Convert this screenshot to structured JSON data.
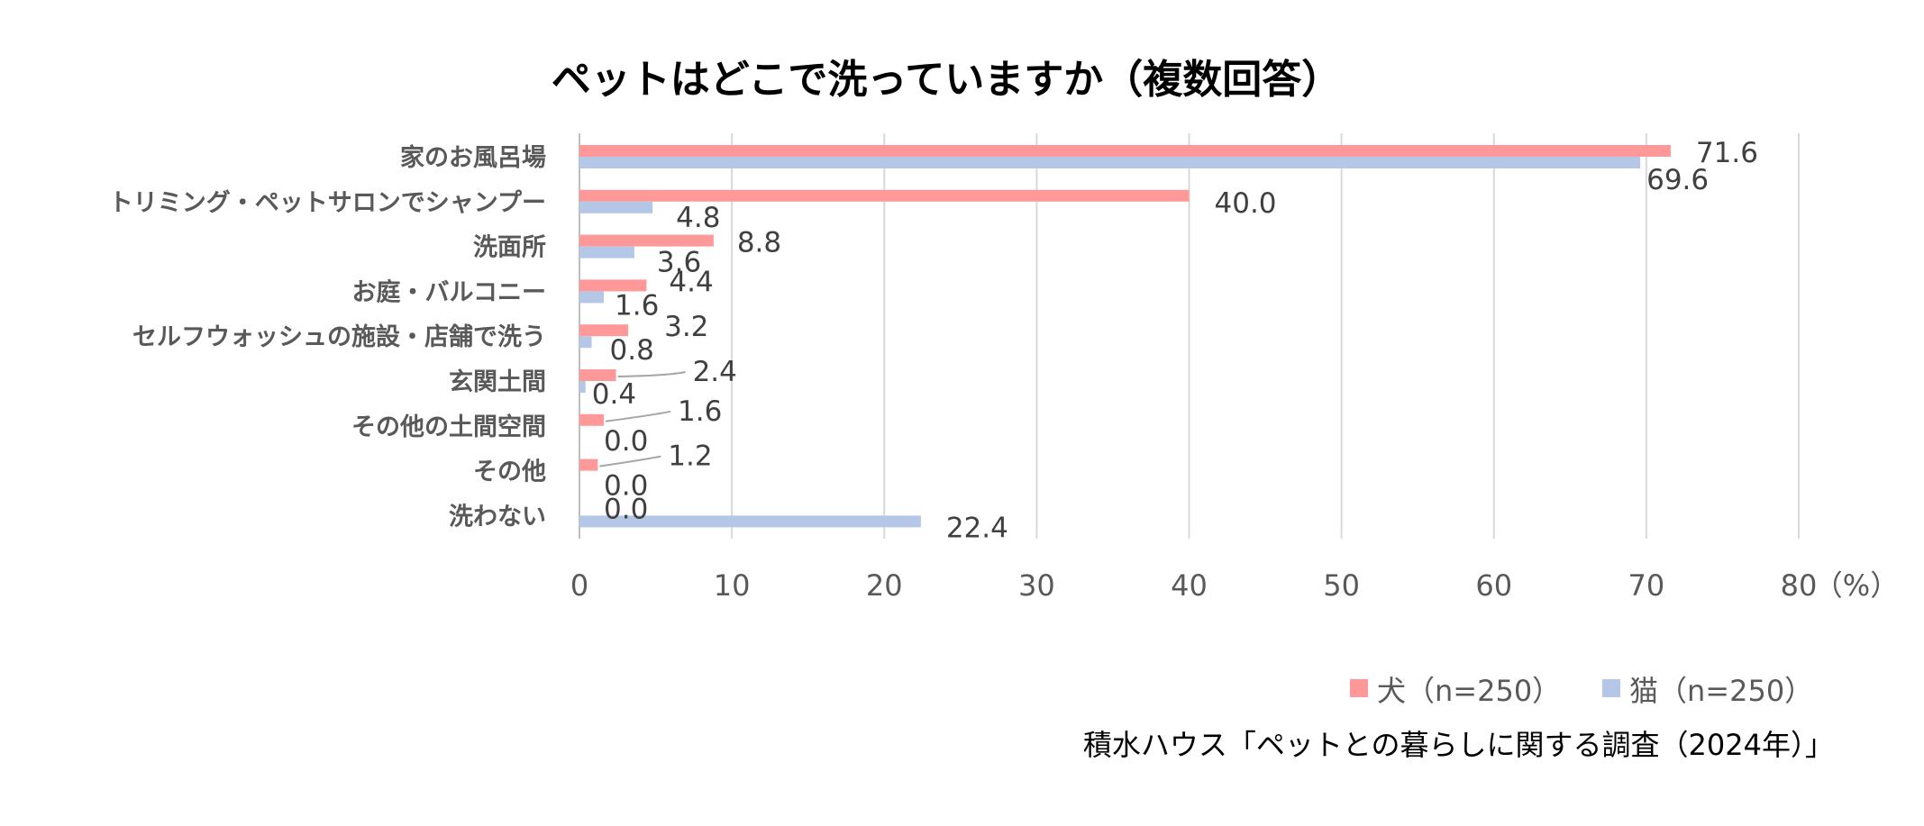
{
  "chart_data": {
    "type": "bar",
    "orientation": "horizontal",
    "title": "ペットはどこで洗っていますか（複数回答）",
    "categories": [
      "家のお風呂場",
      "トリミング・ペットサロンでシャンプー",
      "洗面所",
      "お庭・バルコニー",
      "セルフウォッシュの施設・店舗で洗う",
      "玄関土間",
      "その他の土間空間",
      "その他",
      "洗わない"
    ],
    "series": [
      {
        "name": "犬（n=250）",
        "color": "#FF9999",
        "values": [
          71.6,
          40.0,
          8.8,
          4.4,
          3.2,
          2.4,
          1.6,
          1.2,
          0.0
        ],
        "labels": [
          "71.6",
          "40.0",
          "8.8",
          "4.4",
          "3.2",
          "2.4",
          "1.6",
          "1.2",
          "0.0"
        ]
      },
      {
        "name": "猫（n=250）",
        "color": "#B4C7E7",
        "values": [
          69.6,
          4.8,
          3.6,
          1.6,
          0.8,
          0.4,
          0.0,
          0.0,
          22.4
        ],
        "labels": [
          "69.6",
          "4.8",
          "3.6",
          "1.6",
          "0.8",
          "0.4",
          "0.0",
          "0.0",
          "22.4"
        ]
      }
    ],
    "xlim": [
      0,
      80
    ],
    "xticks": [
      "0",
      "10",
      "20",
      "30",
      "40",
      "50",
      "60",
      "70",
      "80"
    ],
    "x_unit": "（%）",
    "grid": true,
    "legend_position": "bottom-right",
    "source": "積水ハウス「ペットとの暮らしに関する調査（2024年）」"
  }
}
